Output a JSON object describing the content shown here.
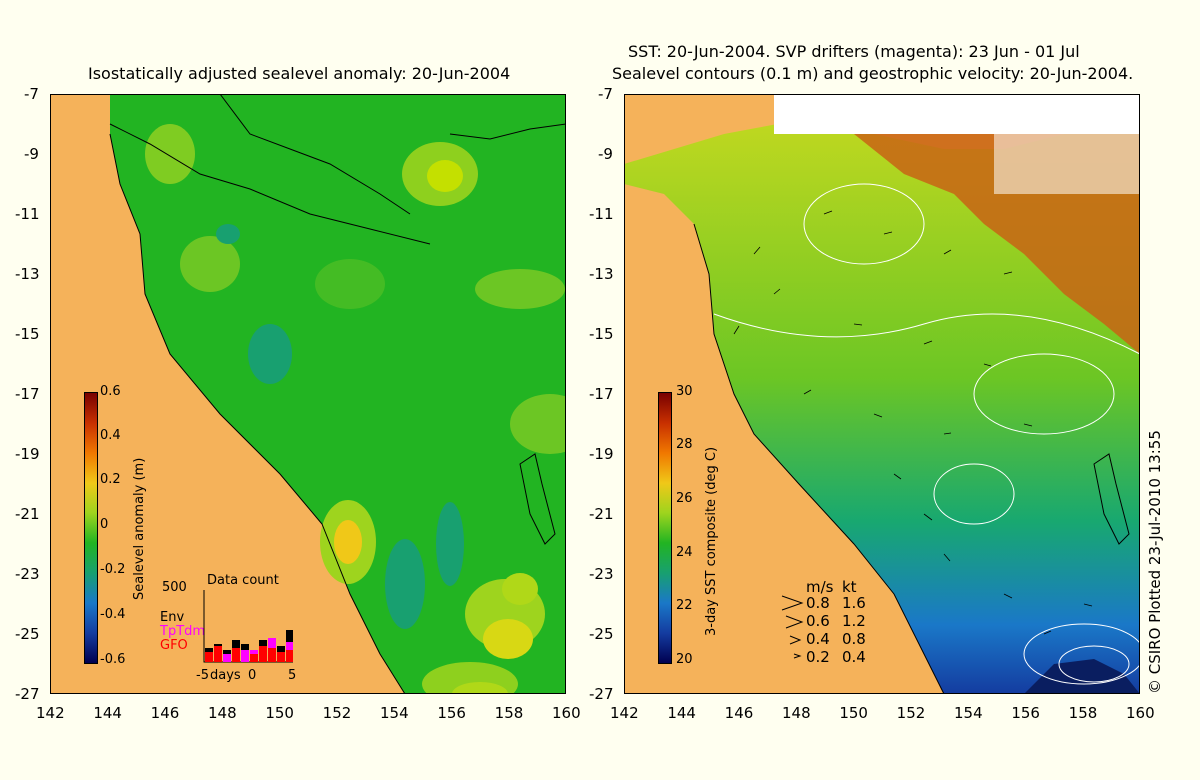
{
  "left_panel": {
    "title": "Isostatically adjusted sealevel anomaly: 20-Jun-2004",
    "colorbar": {
      "label": "Sealevel anomaly (m)",
      "ticks": [
        "0.6",
        "0.4",
        "0.2",
        "0",
        "-0.2",
        "-0.4",
        "-0.6"
      ],
      "range": [
        -0.6,
        0.6
      ]
    },
    "inset": {
      "title": "Data count",
      "max_label": "500",
      "legend": [
        {
          "name": "Env",
          "color": "#000000"
        },
        {
          "name": "TpTdm",
          "color": "#ff00ff"
        },
        {
          "name": "GFO",
          "color": "#ff0000"
        }
      ],
      "x_labels": [
        "-5",
        "days",
        "0",
        "5"
      ]
    }
  },
  "right_panel": {
    "title_line1": "SST: 20-Jun-2004. SVP drifters (magenta): 23 Jun - 01 Jul",
    "title_line2": "Sealevel contours (0.1 m) and geostrophic velocity: 20-Jun-2004.",
    "colorbar": {
      "label": "3-day SST composite (deg C)",
      "ticks": [
        "30",
        "28",
        "26",
        "24",
        "22",
        "20"
      ],
      "range": [
        20,
        30
      ]
    },
    "velocity_key": {
      "header_ms": "m/s",
      "header_kt": "kt",
      "rows": [
        {
          "ms": "0.8",
          "kt": "1.6"
        },
        {
          "ms": "0.6",
          "kt": "1.2"
        },
        {
          "ms": "0.4",
          "kt": "0.8"
        },
        {
          "ms": "0.2",
          "kt": "0.4"
        }
      ]
    }
  },
  "axes": {
    "x_ticks": [
      "142",
      "144",
      "146",
      "148",
      "150",
      "152",
      "154",
      "156",
      "158",
      "160"
    ],
    "y_ticks": [
      "-7",
      "-9",
      "-11",
      "-13",
      "-15",
      "-17",
      "-19",
      "-21",
      "-23",
      "-25",
      "-27"
    ],
    "lon_range": [
      142,
      160
    ],
    "lat_range": [
      -27,
      -7
    ]
  },
  "credit": "© CSIRO Plotted 23-Jul-2010 13:55",
  "colors": {
    "background": "#fffff0",
    "land": "#f5b25a",
    "ocean_anomaly": "#22b422",
    "sst_warm": "#c86414"
  }
}
